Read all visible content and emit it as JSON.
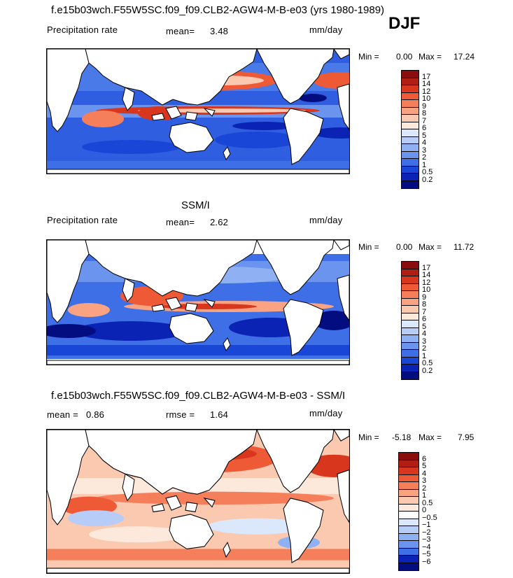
{
  "season": "DJF",
  "panels": [
    {
      "title": "f.e15b03wch.F55W5SC.f09_f09.CLB2-AGW4-M-B-e03 (yrs 1980-1989)",
      "field_label": "Precipitation rate",
      "stat1_label": "mean=",
      "stat1_value": "3.48",
      "stat2_label": "",
      "stat2_value": "",
      "units": "mm/day",
      "min_label": "Min =",
      "min_value": "0.00",
      "max_label": "Max =",
      "max_value": "17.24",
      "colorbar": {
        "labels": [
          "17",
          "14",
          "12",
          "10",
          "9",
          "8",
          "7",
          "6",
          "5",
          "4",
          "3",
          "2",
          "1",
          "0.5",
          "0.2"
        ],
        "colors": [
          "#8a0c0c",
          "#b01e14",
          "#d8371e",
          "#ee5a36",
          "#f47f5a",
          "#f9a383",
          "#fbc8b0",
          "#fde8dc",
          "#dbe7fb",
          "#b7cdf7",
          "#8fb1f3",
          "#6a94ee",
          "#3f6fe6",
          "#1a46d8",
          "#0b23b4",
          "#040d80"
        ]
      }
    },
    {
      "title": "SSM/I",
      "field_label": "Precipitation rate",
      "stat1_label": "mean=",
      "stat1_value": "2.62",
      "stat2_label": "",
      "stat2_value": "",
      "units": "mm/day",
      "min_label": "Min =",
      "min_value": "0.00",
      "max_label": "Max =",
      "max_value": "11.72",
      "colorbar": {
        "labels": [
          "17",
          "14",
          "12",
          "10",
          "9",
          "8",
          "7",
          "6",
          "5",
          "4",
          "3",
          "2",
          "1",
          "0.5",
          "0.2"
        ],
        "colors": [
          "#8a0c0c",
          "#b01e14",
          "#d8371e",
          "#ee5a36",
          "#f47f5a",
          "#f9a383",
          "#fbc8b0",
          "#fde8dc",
          "#dbe7fb",
          "#b7cdf7",
          "#8fb1f3",
          "#6a94ee",
          "#3f6fe6",
          "#1a46d8",
          "#0b23b4",
          "#040d80"
        ]
      }
    },
    {
      "title": "f.e15b03wch.F55W5SC.f09_f09.CLB2-AGW4-M-B-e03 - SSM/I",
      "field_label": "",
      "stat1_label": "mean =",
      "stat1_value": "0.86",
      "stat2_label": "rmse =",
      "stat2_value": "1.64",
      "units": "mm/day",
      "min_label": "Min =",
      "min_value": "-5.18",
      "max_label": "Max =",
      "max_value": "7.95",
      "colorbar": {
        "labels": [
          "6",
          "5",
          "4",
          "3",
          "2",
          "1",
          "0.5",
          "0",
          "−0.5",
          "−1",
          "−2",
          "−3",
          "−4",
          "−5",
          "−6"
        ],
        "colors": [
          "#8a0c0c",
          "#b01e14",
          "#d8371e",
          "#ee5a36",
          "#f47f5a",
          "#f9a383",
          "#fbc8b0",
          "#fde8dc",
          "#ffffff",
          "#dbe7fb",
          "#b7cdf7",
          "#8fb1f3",
          "#6a94ee",
          "#3f6fe6",
          "#0b23b4",
          "#040d80"
        ]
      }
    }
  ],
  "colors": {
    "land": "#ffffff",
    "coastline": "#000000"
  }
}
